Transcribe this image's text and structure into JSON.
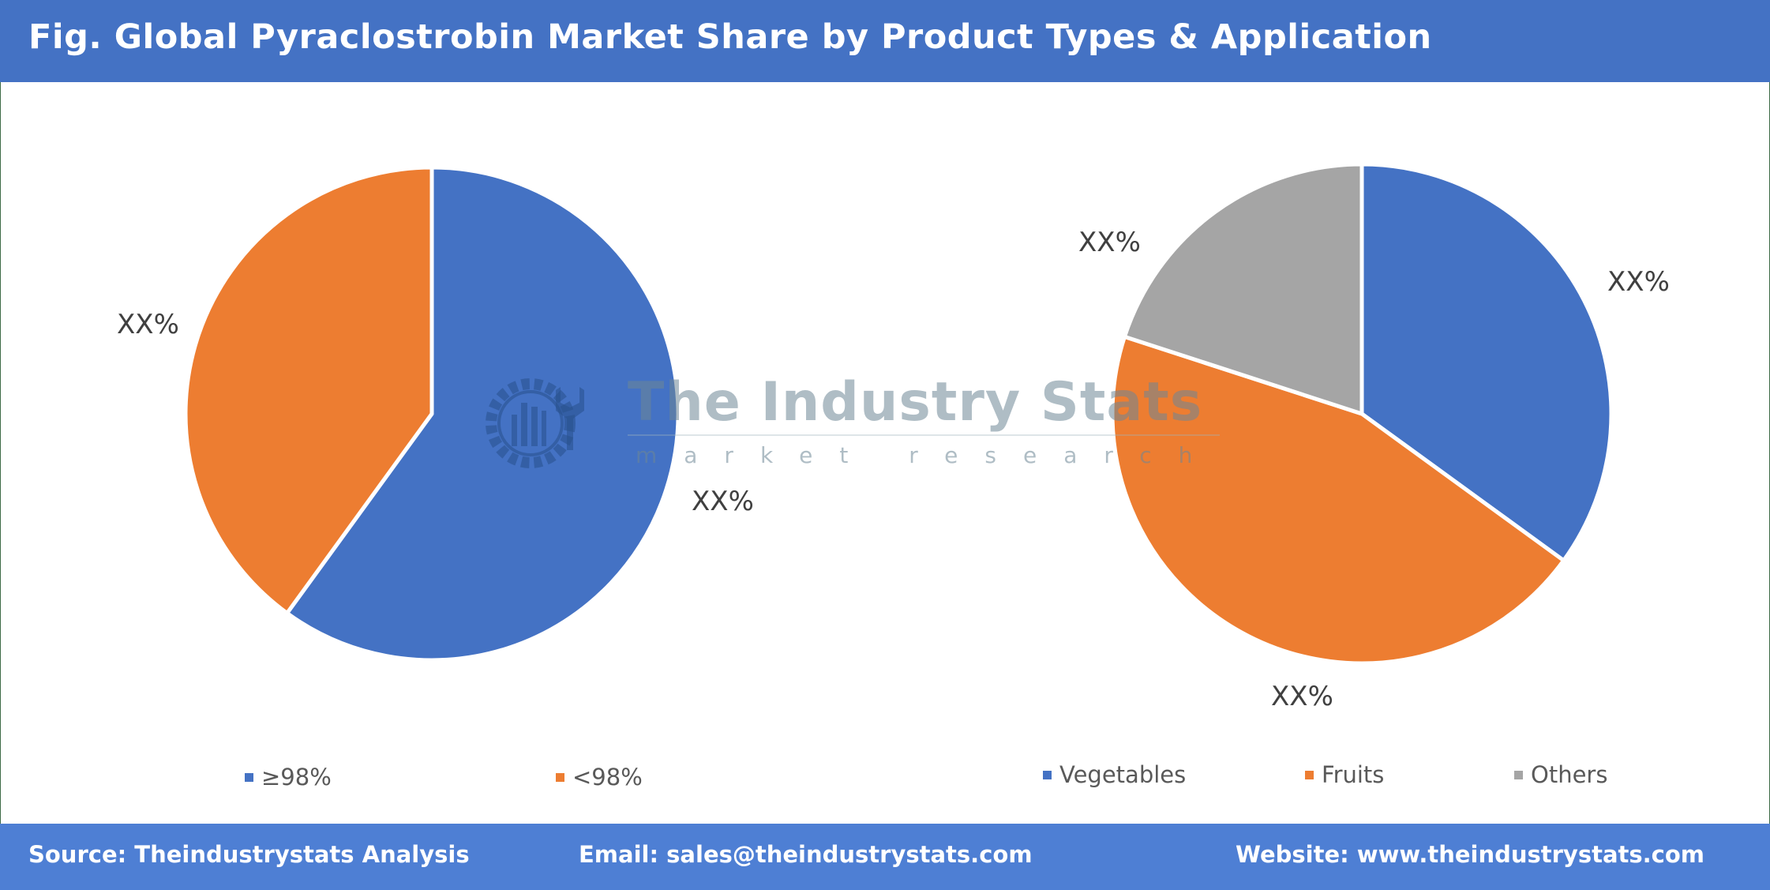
{
  "header": {
    "title": "Fig. Global Pyraclostrobin Market Share by Product Types & Application"
  },
  "footer": {
    "source": "Source: Theindustrystats Analysis",
    "email": "Email: sales@theindustrystats.com",
    "website": "Website: www.theindustrystats.com"
  },
  "watermark": {
    "title": "The Industry Stats",
    "subtitle": "market research"
  },
  "colors": {
    "header_bg": "#4472c4",
    "footer_bg": "#4e7fd4",
    "blue": "#4472c4",
    "orange": "#ed7d31",
    "grey": "#a5a5a5"
  },
  "charts": {
    "product_types": {
      "labels": [
        "XX%",
        "XX%"
      ],
      "legend": [
        {
          "name": "≥98%",
          "color": "#4472c4"
        },
        {
          "name": "<98%",
          "color": "#ed7d31"
        }
      ]
    },
    "application": {
      "labels": [
        "XX%",
        "XX%",
        "XX%"
      ],
      "legend": [
        {
          "name": "Vegetables",
          "color": "#4472c4"
        },
        {
          "name": "Fruits",
          "color": "#ed7d31"
        },
        {
          "name": "Others",
          "color": "#a5a5a5"
        }
      ]
    }
  },
  "chart_data": [
    {
      "type": "pie",
      "title": "Product Types",
      "categories": [
        "≥98%",
        "<98%"
      ],
      "labels": [
        "XX%",
        "XX%"
      ],
      "values_source": "not stated in chart; all data labels read XX%",
      "estimated_from_slice_angles": [
        60,
        40
      ],
      "colors": [
        "#4472c4",
        "#ed7d31"
      ],
      "legend_position": "bottom",
      "start_angle": 0
    },
    {
      "type": "pie",
      "title": "Application",
      "categories": [
        "Vegetables",
        "Fruits",
        "Others"
      ],
      "labels": [
        "XX%",
        "XX%",
        "XX%"
      ],
      "values_source": "not stated in chart; all data labels read XX%",
      "estimated_from_slice_angles": [
        35,
        45,
        20
      ],
      "colors": [
        "#4472c4",
        "#ed7d31",
        "#a5a5a5"
      ],
      "legend_position": "bottom",
      "start_angle": 0
    }
  ]
}
